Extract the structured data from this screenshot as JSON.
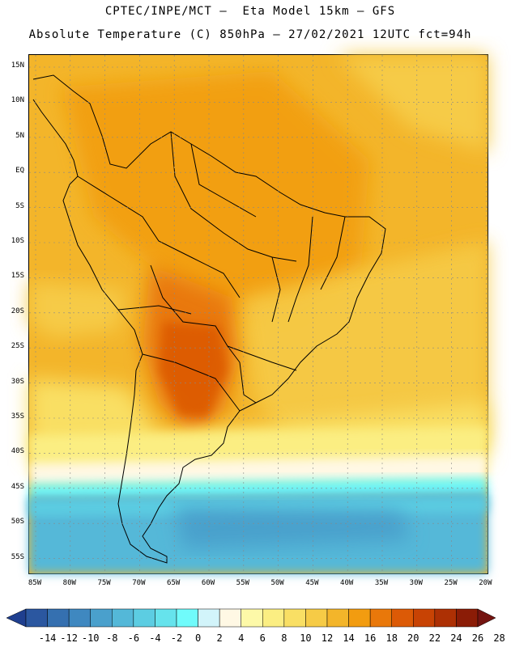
{
  "header": {
    "line1": "CPTEC/INPE/MCT –  Eta Model 15km – GFS",
    "line2": "Absolute Temperature (C) 850hPa – 27/02/2021 12UTC fct=94h"
  },
  "map": {
    "lat_labels": [
      "15N",
      "10N",
      "5N",
      "EQ",
      "5S",
      "10S",
      "15S",
      "20S",
      "25S",
      "30S",
      "35S",
      "40S",
      "45S",
      "50S",
      "55S"
    ],
    "lon_labels": [
      "85W",
      "80W",
      "75W",
      "70W",
      "65W",
      "60W",
      "55W",
      "50W",
      "45W",
      "40W",
      "35W",
      "30W",
      "25W",
      "20W"
    ],
    "gridlines": true
  },
  "colorbar": {
    "ticks": [
      "-14",
      "-12",
      "-10",
      "-8",
      "-6",
      "-4",
      "-2",
      "0",
      "2",
      "4",
      "6",
      "8",
      "10",
      "12",
      "14",
      "16",
      "18",
      "20",
      "22",
      "24",
      "26",
      "28"
    ],
    "colors": [
      "#1f3f8f",
      "#2b57a0",
      "#3570b0",
      "#3f88c0",
      "#4aa0cc",
      "#54b8d8",
      "#5ccde2",
      "#66e3ec",
      "#70fbfb",
      "#d2f4fa",
      "#fff8e4",
      "#fdf9a8",
      "#fbee82",
      "#f9df64",
      "#f6cb46",
      "#f3b52a",
      "#f29c10",
      "#e9780a",
      "#dc5a06",
      "#c84304",
      "#ad3004",
      "#8b1c06",
      "#741410"
    ]
  }
}
